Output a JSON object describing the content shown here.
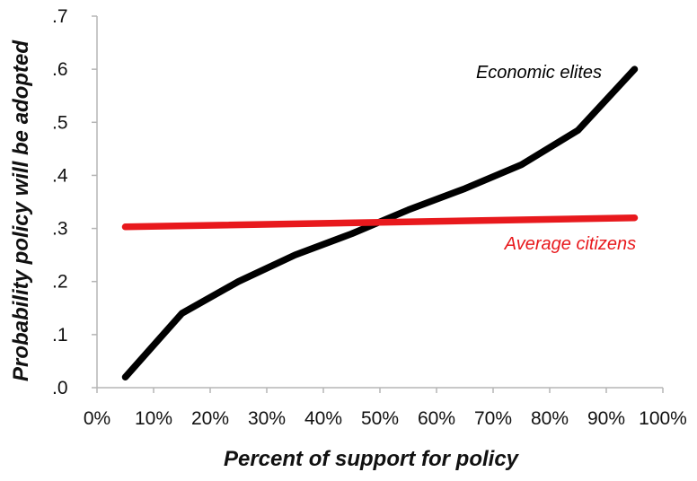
{
  "chart_data": {
    "type": "line",
    "title": "",
    "xlabel": "Percent of support for policy",
    "ylabel": "Probability policy will be adopted",
    "x_tick_labels": [
      "0%",
      "10%",
      "20%",
      "30%",
      "40%",
      "50%",
      "60%",
      "70%",
      "80%",
      "90%",
      "100%"
    ],
    "y_tick_labels": [
      ".0",
      ".1",
      ".2",
      ".3",
      ".4",
      ".5",
      ".6",
      ".7"
    ],
    "xlim": [
      0,
      100
    ],
    "ylim": [
      0,
      0.7
    ],
    "grid": false,
    "legend": "none (series labelled directly on the plot)",
    "series": [
      {
        "name": "Economic elites",
        "color": "#000000",
        "x": [
          5,
          15,
          25,
          35,
          45,
          55,
          65,
          75,
          85,
          95
        ],
        "y": [
          0.02,
          0.14,
          0.2,
          0.25,
          0.29,
          0.335,
          0.375,
          0.42,
          0.485,
          0.6
        ]
      },
      {
        "name": "Average citizens",
        "color": "#e8191d",
        "x": [
          5,
          95
        ],
        "y": [
          0.303,
          0.32
        ]
      }
    ]
  }
}
